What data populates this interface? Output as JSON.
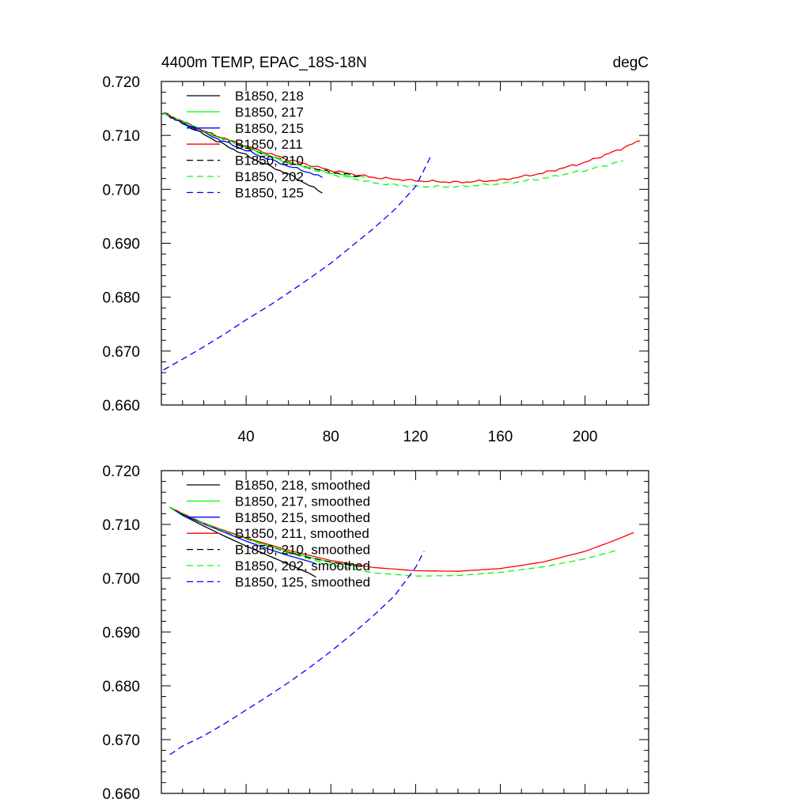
{
  "chart_data": [
    {
      "type": "line",
      "title": "4400m TEMP, EPAC_18S-18N",
      "units": "degC",
      "xlim": [
        0,
        230
      ],
      "ylim": [
        0.66,
        0.72
      ],
      "x_ticks": [
        "40",
        "80",
        "120",
        "160",
        "200"
      ],
      "y_ticks": [
        "0.660",
        "0.670",
        "0.680",
        "0.690",
        "0.700",
        "0.710",
        "0.720"
      ],
      "legend_position": "top-left",
      "grid": false,
      "series": [
        {
          "name": "B1850, 218",
          "color": "#000000",
          "dashed": false,
          "x": [
            1,
            10,
            20,
            30,
            40,
            50,
            60,
            70,
            76
          ],
          "y": [
            0.7142,
            0.7122,
            0.7102,
            0.7082,
            0.7063,
            0.7045,
            0.7028,
            0.7007,
            0.6993
          ]
        },
        {
          "name": "B1850, 217",
          "color": "#00ff00",
          "dashed": false,
          "x": [
            1,
            10,
            20,
            30,
            40,
            50,
            60,
            70,
            80,
            90,
            96
          ],
          "y": [
            0.7142,
            0.7125,
            0.7108,
            0.7093,
            0.7078,
            0.7063,
            0.705,
            0.704,
            0.703,
            0.7025,
            0.7022
          ]
        },
        {
          "name": "B1850, 215",
          "color": "#0000ff",
          "dashed": false,
          "x": [
            1,
            10,
            20,
            30,
            40,
            50,
            60,
            70,
            76
          ],
          "y": [
            0.7142,
            0.7123,
            0.7105,
            0.7088,
            0.7072,
            0.7057,
            0.7043,
            0.7031,
            0.7022
          ]
        },
        {
          "name": "B1850, 211",
          "color": "#ff0000",
          "dashed": false,
          "x": [
            1,
            20,
            40,
            60,
            80,
            100,
            120,
            140,
            160,
            180,
            200,
            215,
            226
          ],
          "y": [
            0.7142,
            0.7108,
            0.708,
            0.7055,
            0.7035,
            0.7022,
            0.7016,
            0.7013,
            0.7017,
            0.703,
            0.705,
            0.7072,
            0.709
          ]
        },
        {
          "name": "B1850, 210",
          "color": "#000000",
          "dashed": true,
          "x": [
            1,
            10,
            20,
            30,
            40,
            50,
            60,
            70,
            80,
            90,
            95
          ],
          "y": [
            0.7142,
            0.7125,
            0.7108,
            0.7092,
            0.7077,
            0.7063,
            0.705,
            0.704,
            0.7032,
            0.7026,
            0.7023
          ]
        },
        {
          "name": "B1850, 202",
          "color": "#00ff00",
          "dashed": true,
          "x": [
            1,
            20,
            40,
            60,
            80,
            100,
            120,
            140,
            160,
            180,
            200,
            218
          ],
          "y": [
            0.7142,
            0.7108,
            0.7078,
            0.705,
            0.7028,
            0.7012,
            0.7005,
            0.7005,
            0.701,
            0.702,
            0.7035,
            0.7053
          ]
        },
        {
          "name": "B1850, 125",
          "color": "#0000ff",
          "dashed": true,
          "x": [
            1,
            10,
            20,
            30,
            40,
            50,
            60,
            70,
            80,
            90,
            100,
            110,
            120,
            127
          ],
          "y": [
            0.6665,
            0.6685,
            0.6708,
            0.6732,
            0.6758,
            0.6782,
            0.6808,
            0.6835,
            0.6863,
            0.6895,
            0.6927,
            0.6962,
            0.7005,
            0.706
          ]
        }
      ]
    },
    {
      "type": "line",
      "title": "",
      "units": "",
      "xlim": [
        0,
        230
      ],
      "ylim": [
        0.66,
        0.72
      ],
      "x_ticks": [],
      "y_ticks": [
        "0.660",
        "0.670",
        "0.680",
        "0.690",
        "0.700",
        "0.710",
        "0.720"
      ],
      "legend_position": "top-left",
      "grid": false,
      "series": [
        {
          "name": "B1850, 218, smoothed",
          "color": "#000000",
          "dashed": false,
          "x": [
            4,
            10,
            20,
            30,
            40,
            50,
            60,
            70,
            73
          ],
          "y": [
            0.7132,
            0.7117,
            0.7097,
            0.7078,
            0.706,
            0.7043,
            0.7026,
            0.7009,
            0.7002
          ]
        },
        {
          "name": "B1850, 217, smoothed",
          "color": "#00ff00",
          "dashed": false,
          "x": [
            4,
            10,
            20,
            30,
            40,
            50,
            60,
            70,
            80,
            90,
            93
          ],
          "y": [
            0.7132,
            0.7119,
            0.7103,
            0.7088,
            0.7074,
            0.7061,
            0.7049,
            0.7039,
            0.703,
            0.7024,
            0.7022
          ]
        },
        {
          "name": "B1850, 215, smoothed",
          "color": "#0000ff",
          "dashed": false,
          "x": [
            4,
            10,
            20,
            30,
            40,
            50,
            60,
            70,
            73
          ],
          "y": [
            0.7132,
            0.7118,
            0.7101,
            0.7085,
            0.7069,
            0.7055,
            0.7042,
            0.7031,
            0.7027
          ]
        },
        {
          "name": "B1850, 211, smoothed",
          "color": "#ff0000",
          "dashed": false,
          "x": [
            4,
            20,
            40,
            60,
            80,
            100,
            120,
            140,
            160,
            180,
            200,
            215,
            223
          ],
          "y": [
            0.7132,
            0.7102,
            0.7075,
            0.7052,
            0.7033,
            0.702,
            0.7014,
            0.7013,
            0.7018,
            0.703,
            0.705,
            0.7072,
            0.7085
          ]
        },
        {
          "name": "B1850, 210, smoothed",
          "color": "#000000",
          "dashed": true,
          "x": [
            4,
            10,
            20,
            30,
            40,
            50,
            60,
            70,
            80,
            90,
            92
          ],
          "y": [
            0.7132,
            0.7119,
            0.7102,
            0.7087,
            0.7073,
            0.706,
            0.7048,
            0.7038,
            0.703,
            0.7024,
            0.7023
          ]
        },
        {
          "name": "B1850, 202, smoothed",
          "color": "#00ff00",
          "dashed": true,
          "x": [
            4,
            20,
            40,
            60,
            80,
            100,
            120,
            140,
            160,
            180,
            200,
            215
          ],
          "y": [
            0.7132,
            0.7102,
            0.7073,
            0.7047,
            0.7025,
            0.701,
            0.7004,
            0.7005,
            0.7011,
            0.7021,
            0.7036,
            0.7052
          ]
        },
        {
          "name": "B1850, 125, smoothed",
          "color": "#0000ff",
          "dashed": true,
          "x": [
            4,
            10,
            20,
            30,
            40,
            50,
            60,
            70,
            80,
            90,
            100,
            110,
            120,
            124
          ],
          "y": [
            0.6672,
            0.6688,
            0.6707,
            0.673,
            0.6755,
            0.678,
            0.6806,
            0.6834,
            0.6864,
            0.6896,
            0.693,
            0.6967,
            0.702,
            0.705
          ]
        }
      ]
    }
  ]
}
